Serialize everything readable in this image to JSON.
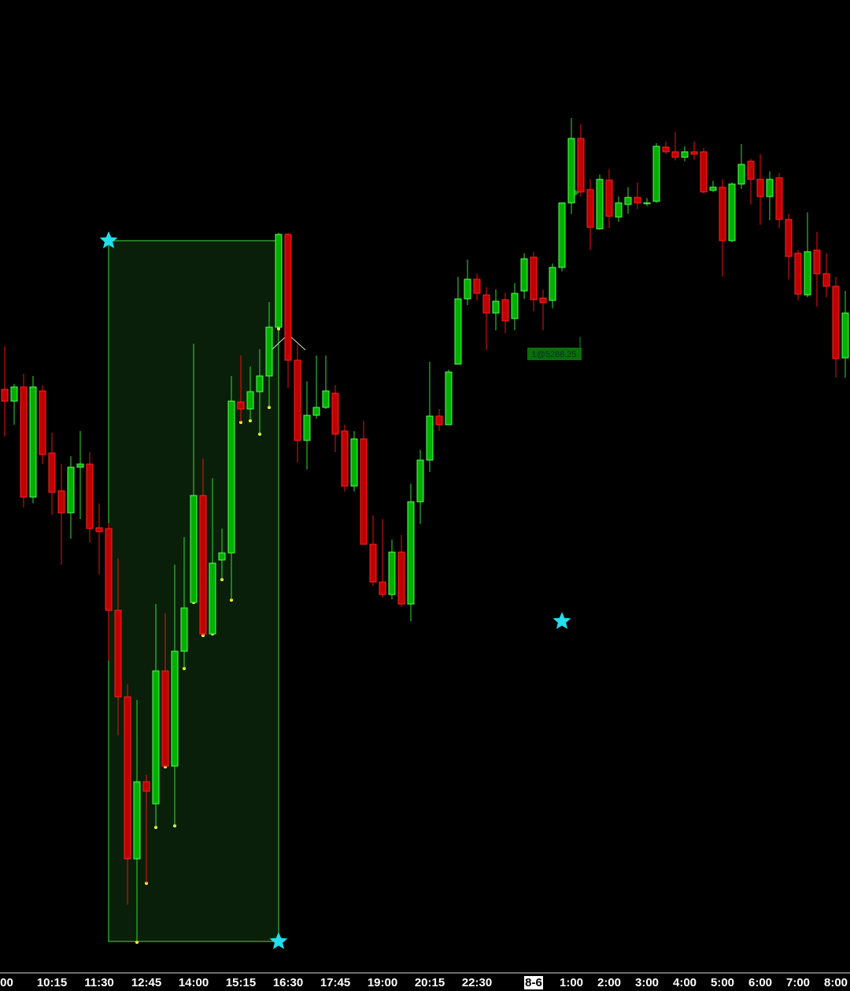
{
  "chart_data": {
    "type": "candlestick",
    "categories": [
      ":00",
      null,
      null,
      null,
      null,
      "10:15",
      null,
      null,
      null,
      null,
      "11:30",
      null,
      null,
      null,
      null,
      "12:45",
      null,
      null,
      null,
      null,
      "14:00",
      null,
      null,
      null,
      null,
      "15:15",
      null,
      null,
      null,
      null,
      "16:30",
      null,
      null,
      null,
      null,
      "17:45",
      null,
      null,
      null,
      null,
      "19:00",
      null,
      null,
      null,
      null,
      "20:15",
      null,
      null,
      null,
      null,
      "22:30",
      null,
      null,
      null,
      null,
      null,
      "8-6",
      null,
      null,
      null,
      "1:00",
      null,
      null,
      null,
      "2:00",
      null,
      null,
      null,
      "3:00",
      null,
      null,
      null,
      "4:00",
      null,
      null,
      null,
      "5:00",
      null,
      null,
      null,
      "6:00",
      null,
      null,
      null,
      "7:00",
      null,
      null,
      null,
      "8:00",
      null
    ],
    "open": [
      5283.5,
      5282,
      5283.8,
      5269.8,
      5283.3,
      5275.4,
      5270.6,
      5267.8,
      5273.6,
      5274,
      5265.9,
      5265.8,
      5255.4,
      5244.4,
      5223.8,
      5233.6,
      5230.8,
      5247.7,
      5235.6,
      5250.2,
      5256.4,
      5270,
      5252.4,
      5261.8,
      5262.7,
      5281.9,
      5281,
      5283.2,
      5285.2,
      5291.4,
      5303.2,
      5287.2,
      5277,
      5280.2,
      5281.2,
      5283,
      5278.2,
      5271.2,
      5277.2,
      5263.8,
      5259,
      5257.4,
      5262.8,
      5256.2,
      5269.2,
      5274.5,
      5280.1,
      5279,
      5286.7,
      5295,
      5297.5,
      5295.5,
      5293.2,
      5294.9,
      5292.5,
      5296,
      5300.3,
      5295.1,
      5294.8,
      5299,
      5307.2,
      5315.4,
      5308.9,
      5303.9,
      5310.1,
      5305.4,
      5307,
      5307.9,
      5307.1,
      5307.4,
      5314.3,
      5313.7,
      5313,
      5313.7,
      5313.7,
      5308.8,
      5309.2,
      5302.4,
      5309.6,
      5312.5,
      5310.2,
      5308,
      5310.4,
      5305.1,
      5300.8,
      5295.5,
      5301.2,
      5298.2,
      5296.6,
      5287.5
    ],
    "high": [
      5289,
      5284.2,
      5285.5,
      5285.2,
      5284,
      5278,
      5274,
      5275,
      5278.2,
      5275.5,
      5269,
      5266.5,
      5262,
      5246,
      5244,
      5234.5,
      5256.2,
      5255,
      5261.2,
      5264.7,
      5289.3,
      5274.7,
      5272.2,
      5265.8,
      5285.2,
      5287.8,
      5286.4,
      5288.6,
      5294.6,
      5303.4,
      5303.4,
      5289.2,
      5284.5,
      5287.8,
      5287.8,
      5284,
      5279,
      5278.2,
      5279.5,
      5267.5,
      5267,
      5264.4,
      5265,
      5271.5,
      5275.8,
      5287,
      5281,
      5286,
      5297.8,
      5300,
      5298.2,
      5296.5,
      5296.2,
      5295.8,
      5297,
      5300.8,
      5301,
      5296.2,
      5299.5,
      5307.2,
      5318,
      5317.2,
      5310.2,
      5310.8,
      5311.5,
      5308,
      5309.2,
      5309.8,
      5307.8,
      5314.8,
      5315,
      5316.2,
      5314.4,
      5315,
      5314.2,
      5310,
      5310.2,
      5309.8,
      5314.7,
      5312.8,
      5313.4,
      5311.2,
      5311,
      5305.8,
      5301.2,
      5306,
      5303.5,
      5300.8,
      5297.8,
      5296
    ],
    "low": [
      5277.5,
      5279,
      5268.5,
      5269,
      5274,
      5267.5,
      5261.2,
      5264.5,
      5267,
      5264,
      5260,
      5249,
      5239.5,
      5218,
      5213.2,
      5220.7,
      5227.8,
      5235.5,
      5228,
      5248,
      5256.4,
      5252.2,
      5252.4,
      5259.3,
      5256.7,
      5279.3,
      5279.5,
      5277.8,
      5281.2,
      5291.2,
      5283.7,
      5274.2,
      5273.3,
      5279.8,
      5281,
      5275.5,
      5270.5,
      5270.5,
      5263.8,
      5258.5,
      5257,
      5256.8,
      5255.8,
      5254,
      5266.4,
      5273,
      5278.2,
      5279,
      5286.7,
      5294.2,
      5294.8,
      5288.5,
      5291,
      5290.6,
      5291,
      5295,
      5293.4,
      5291,
      5293.8,
      5298.5,
      5305.8,
      5308,
      5301.2,
      5303.8,
      5304,
      5304.8,
      5305.8,
      5306.4,
      5306.8,
      5307.2,
      5313.4,
      5312.6,
      5312.5,
      5312.7,
      5308.4,
      5308.6,
      5297.8,
      5302.2,
      5309,
      5307,
      5304.4,
      5305,
      5304,
      5297.5,
      5294.8,
      5295.2,
      5294,
      5295.2,
      5285,
      5285
    ],
    "close": [
      5282,
      5283.8,
      5269.8,
      5283.8,
      5275.2,
      5270.4,
      5267.8,
      5273.6,
      5274,
      5265.8,
      5265.4,
      5255.4,
      5244.4,
      5223.8,
      5233.6,
      5232.4,
      5247.7,
      5235.6,
      5250.2,
      5255.7,
      5270,
      5252.4,
      5261.4,
      5262.7,
      5282,
      5281,
      5283.2,
      5285.2,
      5291.4,
      5303.2,
      5287.2,
      5277,
      5280.2,
      5281.2,
      5283.3,
      5277.8,
      5271.2,
      5277.2,
      5263.8,
      5259,
      5257.4,
      5262.8,
      5256.2,
      5269.2,
      5274.5,
      5280.1,
      5279,
      5285.7,
      5295,
      5297.5,
      5295.7,
      5293.2,
      5294.7,
      5292.2,
      5295.7,
      5300.1,
      5294.9,
      5294.5,
      5299,
      5307.2,
      5315.4,
      5308.6,
      5304.1,
      5310.2,
      5305.5,
      5307.2,
      5307.9,
      5307.2,
      5307.2,
      5314.4,
      5313.7,
      5313,
      5313.7,
      5313.4,
      5308.6,
      5309.2,
      5302.4,
      5309.6,
      5312.1,
      5310.2,
      5308,
      5310.2,
      5305.1,
      5300.4,
      5295.6,
      5301,
      5298.2,
      5296.6,
      5287.4,
      5293.2
    ],
    "ylim": [
      5209.4,
      5333
    ],
    "up_color": "#00b000",
    "down_color": "#c00000",
    "annotations": [
      "1@5288.25"
    ]
  }
}
